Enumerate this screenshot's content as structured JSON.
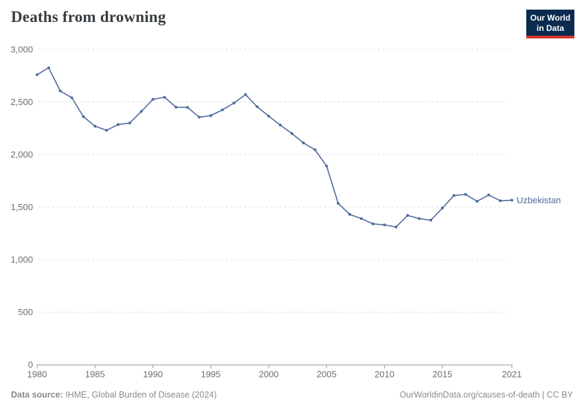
{
  "header": {
    "title": "Deaths from drowning"
  },
  "logo": {
    "line1": "Our World",
    "line2": "in Data",
    "bg": "#0b2b50",
    "accent": "#d8352f"
  },
  "footer": {
    "source_label": "Data source:",
    "source_text": " IHME, Global Burden of Disease (2024)",
    "right_text": "OurWorldinData.org/causes-of-death | CC BY"
  },
  "chart_data": {
    "type": "line",
    "title": "Deaths from drowning",
    "xlabel": "",
    "ylabel": "",
    "xlim": [
      1980,
      2021
    ],
    "ylim": [
      0,
      3000
    ],
    "yticks": [
      0,
      500,
      1000,
      1500,
      2000,
      2500,
      3000
    ],
    "xticks": [
      1980,
      1985,
      1990,
      1995,
      2000,
      2005,
      2010,
      2015,
      2021
    ],
    "grid": "horizontal-dashed",
    "legend": "end-of-line-label",
    "x": [
      1980,
      1981,
      1982,
      1983,
      1984,
      1985,
      1986,
      1987,
      1988,
      1989,
      1990,
      1991,
      1992,
      1993,
      1994,
      1995,
      1996,
      1997,
      1998,
      1999,
      2000,
      2001,
      2002,
      2003,
      2004,
      2005,
      2006,
      2007,
      2008,
      2009,
      2010,
      2011,
      2012,
      2013,
      2014,
      2015,
      2016,
      2017,
      2018,
      2019,
      2020,
      2021
    ],
    "series": [
      {
        "name": "Uzbekistan",
        "color": "#4c6a9c",
        "values": [
          2760,
          2825,
          2605,
          2540,
          2360,
          2270,
          2230,
          2285,
          2300,
          2410,
          2525,
          2545,
          2450,
          2448,
          2355,
          2370,
          2425,
          2490,
          2570,
          2455,
          2365,
          2280,
          2200,
          2110,
          2045,
          1890,
          1535,
          1430,
          1390,
          1340,
          1330,
          1310,
          1420,
          1390,
          1375,
          1490,
          1610,
          1620,
          1555,
          1615,
          1560,
          1565
        ]
      }
    ]
  }
}
